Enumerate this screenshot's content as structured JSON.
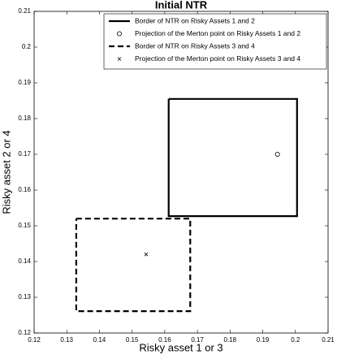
{
  "chart_data": {
    "type": "line",
    "title": "Initial NTR",
    "xlabel": "Risky asset 1 or 3",
    "ylabel": "Risky asset 2 or 4",
    "xlim": [
      0.12,
      0.21
    ],
    "ylim": [
      0.12,
      0.21
    ],
    "xticks": [
      0.12,
      0.13,
      0.14,
      0.15,
      0.16,
      0.17,
      0.18,
      0.19,
      0.2,
      0.21
    ],
    "yticks": [
      0.12,
      0.13,
      0.14,
      0.15,
      0.16,
      0.17,
      0.18,
      0.19,
      0.2,
      0.21
    ],
    "legend": "northeast",
    "series": [
      {
        "name": "Border of NTR on Risky Assets 1 and 2",
        "color": "#000000",
        "style": "solid",
        "x": [
          0.1612,
          0.2005,
          0.2005,
          0.1612,
          0.1612
        ],
        "y": [
          0.1855,
          0.1855,
          0.1527,
          0.1527,
          0.1855
        ]
      },
      {
        "name": "Projection of the Merton point on Risky Assets 1 and 2",
        "color": "#000000",
        "style": "circle",
        "x": [
          0.1945
        ],
        "y": [
          0.17
        ]
      },
      {
        "name": "Border of NTR on Risky Assets 3 and 4",
        "color": "#000000",
        "style": "dashed",
        "x": [
          0.1329,
          0.1678,
          0.1678,
          0.1329,
          0.1329
        ],
        "y": [
          0.152,
          0.152,
          0.1261,
          0.1261,
          0.152
        ]
      },
      {
        "name": "Projection of the Merton point on Risky Assets 3 and 4",
        "color": "#000000",
        "style": "cross",
        "x": [
          0.1543
        ],
        "y": [
          0.142
        ]
      }
    ]
  }
}
